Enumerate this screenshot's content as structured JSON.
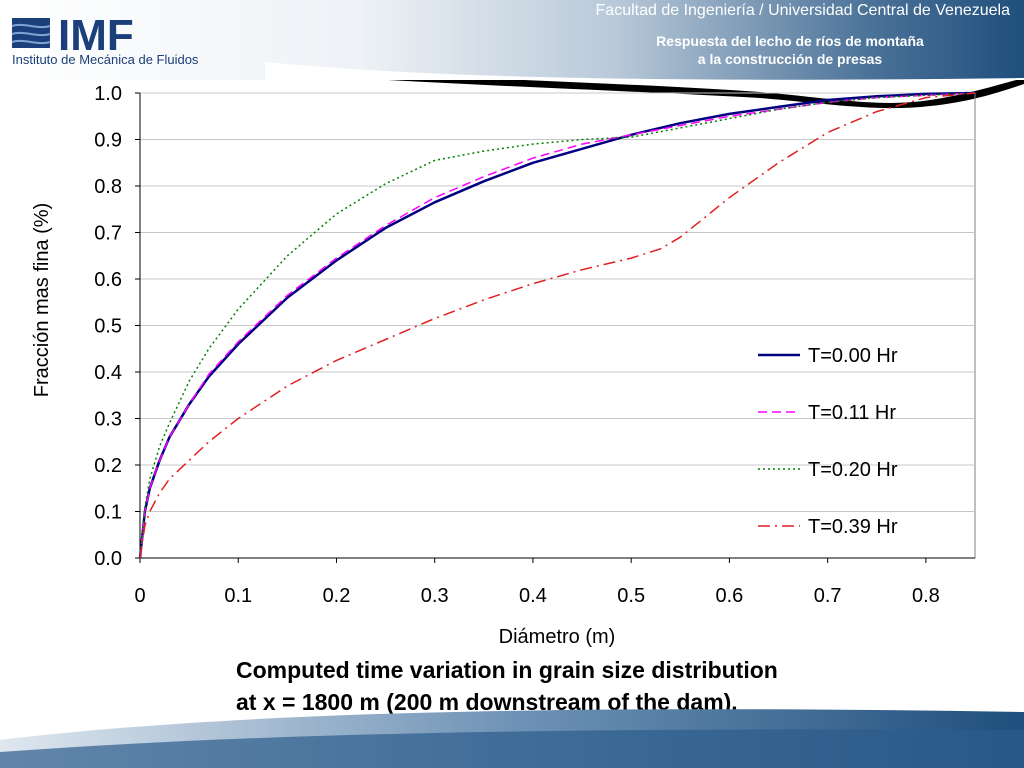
{
  "header": {
    "logo_text": "IMF",
    "logo_subtitle": "Instituto de Mecánica de Fluidos",
    "faculty": "Facultad de Ingeniería / Universidad Central de Venezuela",
    "subtitle_line1": "Respuesta del lecho de ríos de montaña",
    "subtitle_line2": "a la construcción de presas"
  },
  "caption": {
    "line1": "Computed time variation in grain size distribution",
    "line2": "at x = 1800 m (200 m downstream of the dam)."
  },
  "colors": {
    "header_dark": "#1f4f7c",
    "header_light": "#e8eef4",
    "logo_blue": "#1b3f7a"
  },
  "chart_data": {
    "type": "line",
    "title": "",
    "xlabel": "Diámetro (m)",
    "ylabel": "Fracción mas fina (%)",
    "xlim": [
      0,
      0.85
    ],
    "ylim": [
      0,
      1.0
    ],
    "xticks": [
      "0",
      "0.1",
      "0.2",
      "0.3",
      "0.4",
      "0.5",
      "0.6",
      "0.7",
      "0.8"
    ],
    "yticks": [
      "0.0",
      "0.1",
      "0.2",
      "0.3",
      "0.4",
      "0.5",
      "0.6",
      "0.7",
      "0.8",
      "0.9",
      "1.0"
    ],
    "grid": "horizontal",
    "legend_position": "right",
    "series": [
      {
        "name": "T=0.00 Hr",
        "color": "#000080",
        "style": "solid",
        "x": [
          0,
          0.005,
          0.01,
          0.02,
          0.03,
          0.05,
          0.07,
          0.1,
          0.15,
          0.2,
          0.25,
          0.3,
          0.35,
          0.4,
          0.45,
          0.5,
          0.55,
          0.6,
          0.65,
          0.7,
          0.75,
          0.8,
          0.85
        ],
        "y": [
          0,
          0.1,
          0.15,
          0.21,
          0.26,
          0.33,
          0.39,
          0.46,
          0.56,
          0.64,
          0.71,
          0.765,
          0.81,
          0.85,
          0.88,
          0.91,
          0.935,
          0.955,
          0.97,
          0.985,
          0.993,
          0.998,
          1.0
        ]
      },
      {
        "name": "T=0.11 Hr",
        "color": "#ff00ff",
        "style": "dashed",
        "x": [
          0,
          0.005,
          0.01,
          0.02,
          0.03,
          0.05,
          0.07,
          0.1,
          0.15,
          0.2,
          0.25,
          0.3,
          0.35,
          0.4,
          0.45,
          0.5,
          0.55,
          0.6,
          0.65,
          0.7,
          0.75,
          0.8,
          0.85
        ],
        "y": [
          0,
          0.1,
          0.15,
          0.21,
          0.26,
          0.33,
          0.395,
          0.465,
          0.565,
          0.645,
          0.715,
          0.775,
          0.82,
          0.86,
          0.89,
          0.91,
          0.93,
          0.95,
          0.965,
          0.98,
          0.99,
          0.995,
          1.0
        ]
      },
      {
        "name": "T=0.20 Hr",
        "color": "#008000",
        "style": "dotted",
        "x": [
          0,
          0.005,
          0.01,
          0.02,
          0.03,
          0.05,
          0.07,
          0.1,
          0.15,
          0.2,
          0.25,
          0.3,
          0.35,
          0.4,
          0.45,
          0.5,
          0.55,
          0.6,
          0.65,
          0.7,
          0.75,
          0.8,
          0.85
        ],
        "y": [
          0,
          0.11,
          0.17,
          0.24,
          0.29,
          0.38,
          0.45,
          0.535,
          0.65,
          0.74,
          0.805,
          0.855,
          0.875,
          0.89,
          0.9,
          0.905,
          0.925,
          0.945,
          0.965,
          0.98,
          0.99,
          0.995,
          1.0
        ]
      },
      {
        "name": "T=0.39 Hr",
        "color": "#e02020",
        "style": "dashdot",
        "x": [
          0,
          0.005,
          0.01,
          0.02,
          0.03,
          0.05,
          0.07,
          0.1,
          0.15,
          0.2,
          0.25,
          0.3,
          0.35,
          0.4,
          0.45,
          0.5,
          0.53,
          0.55,
          0.6,
          0.65,
          0.7,
          0.75,
          0.8,
          0.85
        ],
        "y": [
          0,
          0.07,
          0.1,
          0.14,
          0.17,
          0.21,
          0.25,
          0.3,
          0.37,
          0.425,
          0.47,
          0.515,
          0.555,
          0.59,
          0.62,
          0.645,
          0.665,
          0.69,
          0.775,
          0.85,
          0.915,
          0.96,
          0.99,
          1.0
        ]
      }
    ]
  }
}
